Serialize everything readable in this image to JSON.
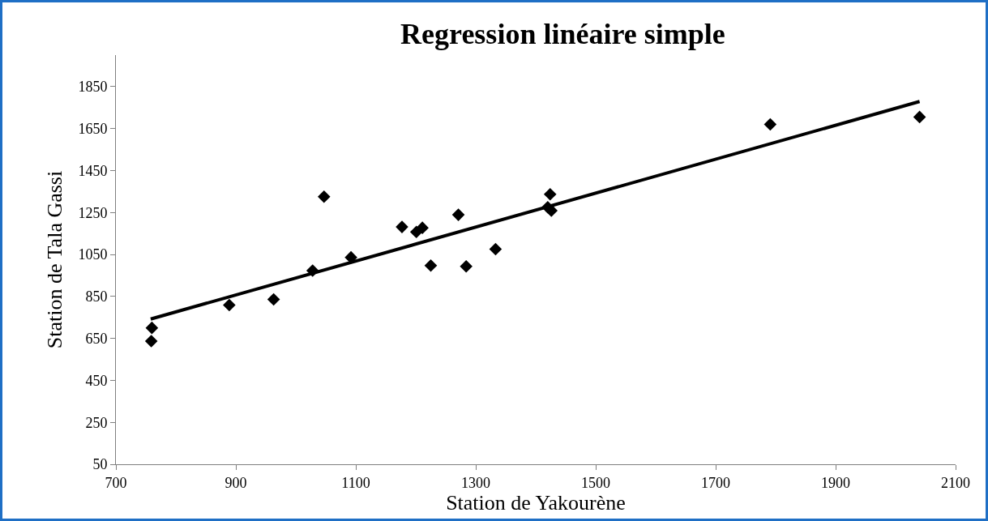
{
  "chart_data": {
    "type": "scatter",
    "title": "Regression linéaire simple",
    "xlabel": "Station de Yakourène",
    "ylabel": "Station de Tala Gassi",
    "xlim": [
      700,
      2100
    ],
    "xticks": [
      700,
      900,
      1100,
      1300,
      1500,
      1700,
      1900,
      2100
    ],
    "ylim": [
      50,
      2000
    ],
    "yticks": [
      50,
      250,
      450,
      650,
      850,
      1050,
      1250,
      1450,
      1650,
      1850
    ],
    "grid": false,
    "marker": "diamond",
    "series": [
      {
        "type": "scatter",
        "color": "#000000",
        "x": [
          759,
          760,
          889,
          963,
          1028,
          1047,
          1092,
          1177,
          1201,
          1211,
          1225,
          1271,
          1284,
          1333,
          1420,
          1424,
          1426,
          1791,
          2040
        ],
        "values": [
          637,
          700,
          809,
          836,
          973,
          1325,
          1036,
          1181,
          1157,
          1177,
          997,
          1239,
          993,
          1075,
          1275,
          1337,
          1259,
          1670,
          1705
        ]
      },
      {
        "type": "line",
        "color": "#000000",
        "line_style": "solid",
        "marker": "none",
        "x": [
          758,
          2040
        ],
        "values": [
          742,
          1779
        ]
      }
    ]
  }
}
